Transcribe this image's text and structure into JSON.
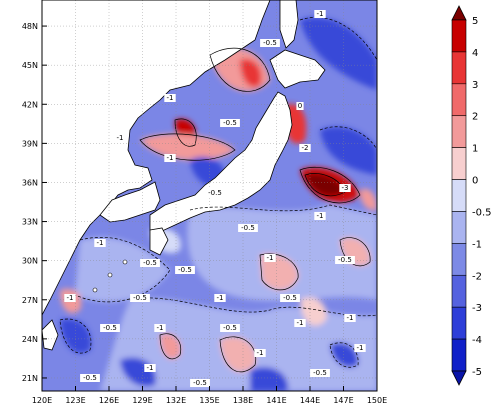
{
  "map": {
    "lat_ticks": [
      "48N",
      "45N",
      "42N",
      "39N",
      "36N",
      "33N",
      "30N",
      "27N",
      "24N",
      "21N"
    ],
    "lon_ticks": [
      "120E",
      "123E",
      "126E",
      "129E",
      "132E",
      "135E",
      "138E",
      "141E",
      "144E",
      "147E",
      "150E"
    ],
    "domain": {
      "lon": [
        120,
        150
      ],
      "lat": [
        20,
        50
      ]
    },
    "land_color": "#ffffff",
    "ocean_base_color": "#7b86e6",
    "contour_labels": [
      "-1",
      "-0.5",
      "-1",
      "0",
      "-2",
      "-3",
      "-1",
      "-0.5",
      "-1",
      "-0.5",
      "-1",
      "-0.5",
      "-1",
      "-0.5",
      "-0.5",
      "-1",
      "-0.5",
      "-1",
      "-0.5",
      "-1",
      "-0.5",
      "-1",
      "-0.5",
      "-1",
      "-0.5",
      "-1",
      "-0.5",
      "-1",
      "-0.5",
      "-1",
      "-0.5",
      "-1"
    ]
  },
  "colorbar": {
    "labels": [
      "5",
      "4",
      "3",
      "2",
      "1",
      "0",
      "-0.5",
      "-1",
      "-2",
      "-3",
      "-4",
      "-5"
    ],
    "colors": [
      "#7a0000",
      "#c70000",
      "#e83535",
      "#f06a6a",
      "#f29a9a",
      "#f7cfcf",
      "#d6dcf8",
      "#aab4f0",
      "#7d8ae6",
      "#5562df",
      "#2e3ed8",
      "#1020c8",
      "#0a14a8"
    ]
  }
}
